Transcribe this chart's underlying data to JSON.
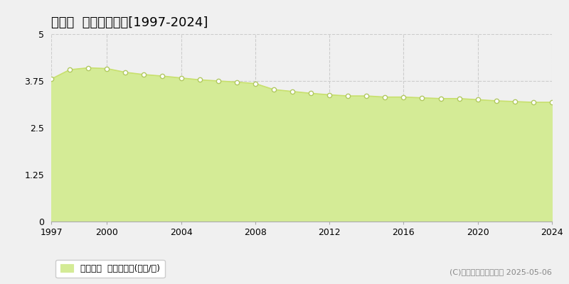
{
  "title": "川場村  基準地価推移[1997-2024]",
  "years": [
    1997,
    1998,
    1999,
    2000,
    2001,
    2002,
    2003,
    2004,
    2005,
    2006,
    2007,
    2008,
    2009,
    2010,
    2011,
    2012,
    2013,
    2014,
    2015,
    2016,
    2017,
    2018,
    2019,
    2020,
    2021,
    2022,
    2023,
    2024
  ],
  "values": [
    3.8,
    4.05,
    4.1,
    4.08,
    3.98,
    3.92,
    3.88,
    3.83,
    3.78,
    3.75,
    3.72,
    3.68,
    3.52,
    3.47,
    3.42,
    3.38,
    3.35,
    3.35,
    3.32,
    3.32,
    3.3,
    3.28,
    3.28,
    3.25,
    3.22,
    3.2,
    3.18,
    3.18
  ],
  "ylim": [
    0,
    5
  ],
  "yticks": [
    0,
    1.25,
    2.5,
    3.75,
    5
  ],
  "ytick_labels": [
    "0",
    "1.25",
    "2.5",
    "3.75",
    "5"
  ],
  "xticks": [
    1997,
    2000,
    2004,
    2008,
    2012,
    2016,
    2020,
    2024
  ],
  "line_color": "#c8e06e",
  "fill_color": "#d4eb96",
  "marker_facecolor": "#ffffff",
  "marker_edgecolor": "#b0c860",
  "grid_color": "#cccccc",
  "background_color": "#f0f0f0",
  "plot_bg_color": "#f0f0f0",
  "legend_label": "基準地価  平均坪単価(万円/坪)",
  "copyright_text": "(C)土地価格ドットコム 2025-05-06",
  "title_fontsize": 13,
  "tick_fontsize": 9,
  "legend_fontsize": 9,
  "copyright_fontsize": 8
}
